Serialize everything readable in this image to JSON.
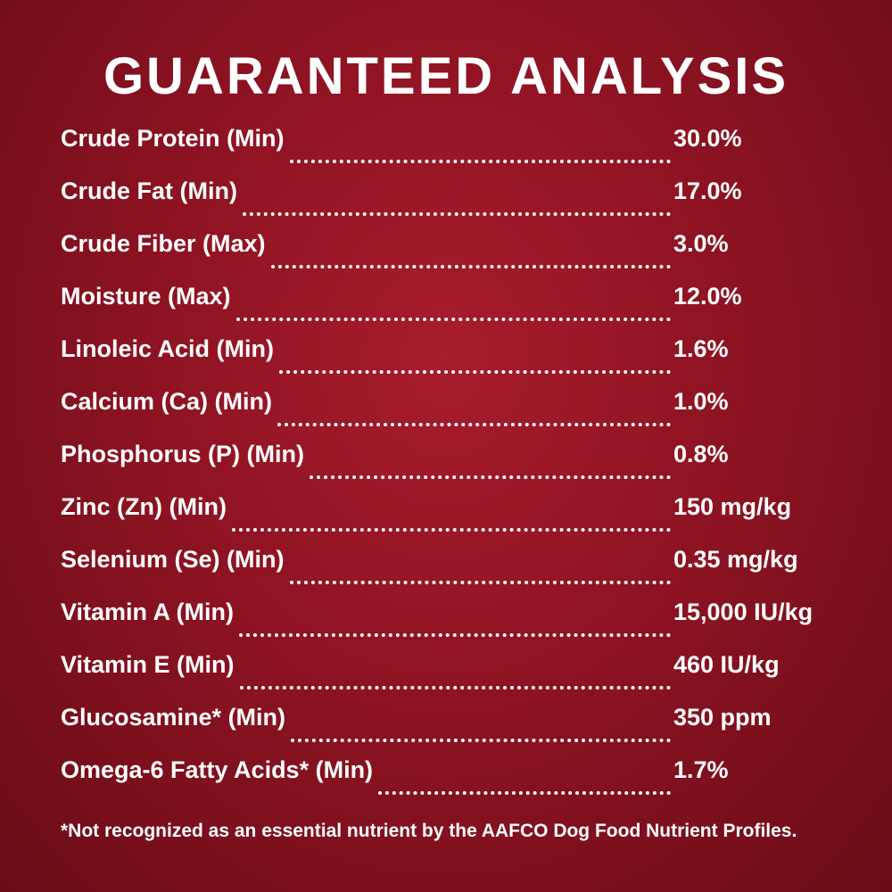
{
  "title": "GUARANTEED ANALYSIS",
  "rows": [
    {
      "name": "Crude Protein (Min)",
      "value": "30.0%"
    },
    {
      "name": "Crude Fat (Min)",
      "value": "17.0%"
    },
    {
      "name": "Crude Fiber (Max)",
      "value": "3.0%"
    },
    {
      "name": "Moisture (Max)",
      "value": "12.0%"
    },
    {
      "name": "Linoleic Acid (Min)",
      "value": "1.6%"
    },
    {
      "name": "Calcium (Ca) (Min)",
      "value": "1.0%"
    },
    {
      "name": "Phosphorus (P) (Min)",
      "value": "0.8%"
    },
    {
      "name": "Zinc (Zn) (Min)",
      "value": "150 mg/kg"
    },
    {
      "name": "Selenium (Se) (Min)",
      "value": "0.35 mg/kg"
    },
    {
      "name": "Vitamin A (Min)",
      "value": "15,000 IU/kg"
    },
    {
      "name": "Vitamin E (Min)",
      "value": "460 IU/kg"
    },
    {
      "name": "Glucosamine* (Min)",
      "value": "350 ppm"
    },
    {
      "name": "Omega-6 Fatty Acids* (Min)",
      "value": "1.7%"
    }
  ],
  "footnote": "*Not recognized as an essential nutrient by the AAFCO Dog Food Nutrient Profiles."
}
